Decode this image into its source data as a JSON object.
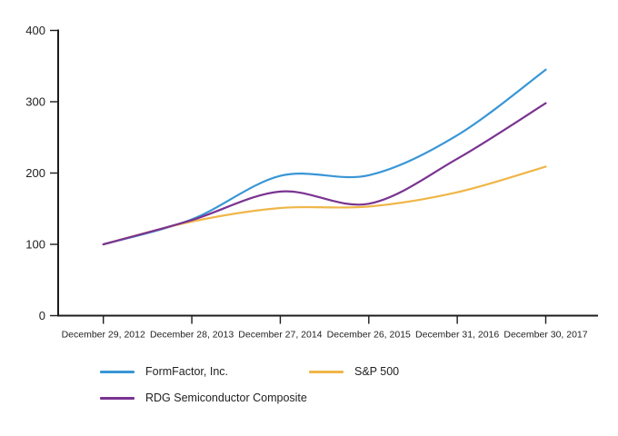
{
  "chart_data": {
    "type": "line",
    "title": "",
    "xlabel": "",
    "ylabel": "",
    "x_labels": [
      "December 29, 2012",
      "December 28, 2013",
      "December 27, 2014",
      "December 26, 2015",
      "December 31, 2016",
      "December 30, 2017"
    ],
    "series": [
      {
        "name": "FormFactor, Inc.",
        "color": "#3996D5",
        "values": [
          100,
          135,
          196,
          197,
          253,
          345
        ]
      },
      {
        "name": "S&P 500",
        "color": "#EFB648",
        "values": [
          100,
          132,
          151,
          153,
          173,
          209
        ]
      },
      {
        "name": "RDG Semiconductor Composite",
        "color": "#7A3391",
        "values": [
          100,
          134,
          174,
          157,
          220,
          298
        ]
      }
    ],
    "y_ticks": [
      0,
      100,
      200,
      300,
      400
    ],
    "ylim": [
      0,
      400
    ],
    "grid": false,
    "legend_position": "bottom",
    "smooth": true,
    "axis_color": "#1c1c1c",
    "text_color": "#1f1f1f"
  }
}
